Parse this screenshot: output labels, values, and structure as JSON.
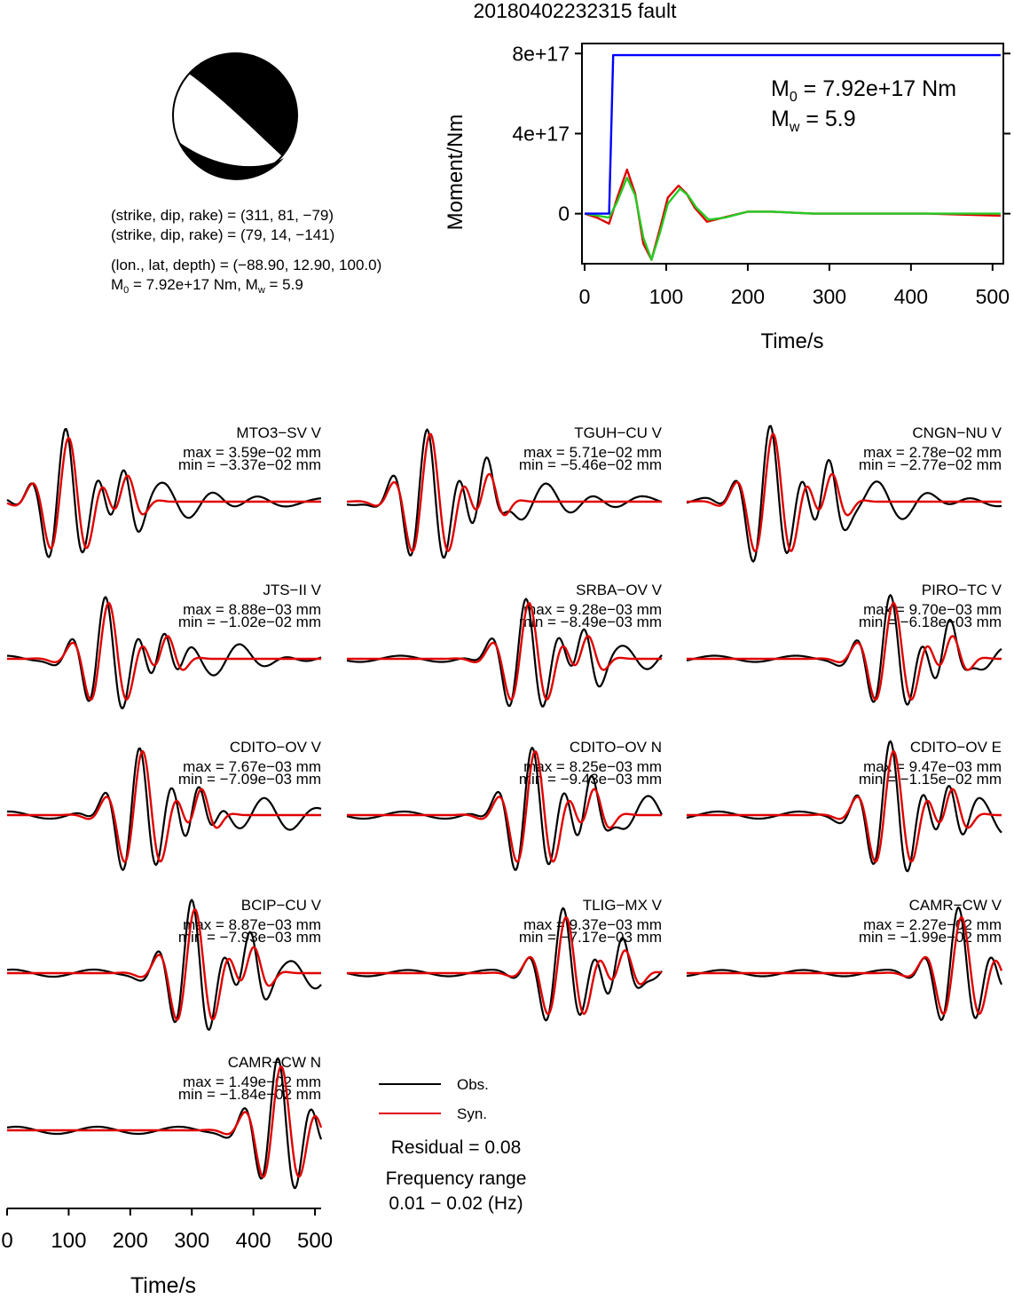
{
  "title": "20180402232315 fault",
  "mechanism": {
    "line1": "(strike, dip, rake) = (311, 81, −79)",
    "line2": "(strike, dip, rake) = (79, 14, −141)",
    "line3": "(lon., lat, depth) = (−88.90, 12.90, 100.0)",
    "m0_label": "M",
    "m0_sub": "0",
    "m0_text": " = 7.92e+17 Nm, M",
    "mw_sub": "w",
    "mw_text": " = 5.9"
  },
  "moment_plot": {
    "ylabel": "Moment/Nm",
    "xlabel": "Time/s",
    "m0_annot": " = 7.92e+17 Nm",
    "mw_annot": " = 5.9",
    "m_letter": "M",
    "m0_sub": "0",
    "mw_sub": "w",
    "yticks": [
      {
        "v": 0,
        "label": "0"
      },
      {
        "v": 4e+17,
        "label": "4e+17"
      },
      {
        "v": 8e+17,
        "label": "8e+17"
      }
    ],
    "xticks": [
      0,
      100,
      200,
      300,
      400,
      500
    ]
  },
  "traces_xlabel": "Time/s",
  "traces_xticks": [
    0,
    100,
    200,
    300,
    400,
    500
  ],
  "legend": {
    "obs": "Obs.",
    "syn": "Syn.",
    "residual": "Residual = 0.08",
    "freq_title": "Frequency range",
    "freq_value": "0.01 − 0.02 (Hz)"
  },
  "colors": {
    "obs": "#000000",
    "syn": "#e00000",
    "cumulative": "#0000ff",
    "stf_green": "#22cc22"
  },
  "chart_data": [
    {
      "type": "line",
      "title": "",
      "xlabel": "Time/s",
      "ylabel": "Moment/Nm",
      "xlim": [
        0,
        510
      ],
      "ylim": [
        -2.5e+17,
        8.5e+17
      ],
      "series": [
        {
          "color": "#0000ff",
          "x": [
            0,
            30,
            35,
            510
          ],
          "y": [
            0,
            0,
            7.92e+17,
            7.92e+17
          ]
        },
        {
          "color": "#e00000",
          "x": [
            0,
            15,
            30,
            40,
            52,
            62,
            72,
            82,
            92,
            102,
            115,
            125,
            135,
            150,
            170,
            200,
            230,
            280,
            350,
            420,
            510
          ],
          "y": [
            0,
            -2e+16,
            -5e+16,
            8e+16,
            2.2e+17,
            1e+17,
            -1.5e+17,
            -2.3e+17,
            -8e+16,
            8e+16,
            1.4e+17,
            1e+17,
            3e+16,
            -4e+16,
            -2e+16,
            1e+16,
            1e+16,
            0,
            0,
            0,
            -1e+16
          ]
        },
        {
          "color": "#22cc22",
          "x": [
            0,
            30,
            40,
            52,
            62,
            72,
            82,
            92,
            102,
            117,
            127,
            137,
            152,
            172,
            200,
            230,
            280,
            350,
            420,
            510
          ],
          "y": [
            0,
            -2e+16,
            6e+16,
            1.8e+17,
            9e+16,
            -1.2e+17,
            -2.3e+17,
            -1e+17,
            5e+16,
            1.25e+17,
            9e+16,
            3e+16,
            -3e+16,
            -2e+16,
            1e+16,
            1e+16,
            0,
            0,
            0,
            0
          ]
        }
      ]
    },
    {
      "type": "line",
      "xlim": [
        0,
        510
      ],
      "panels": [
        {
          "station": "MTO3−SV V",
          "max": "max = 3.59e−02 mm",
          "min": "min = −3.37e−02 mm"
        },
        {
          "station": "TGUH−CU V",
          "max": "max = 5.71e−02 mm",
          "min": "min = −5.46e−02 mm"
        },
        {
          "station": "CNGN−NU V",
          "max": "max = 2.78e−02 mm",
          "min": "min = −2.77e−02 mm"
        },
        {
          "station": "JTS−II V",
          "max": "max = 8.88e−03 mm",
          "min": "min = −1.02e−02 mm"
        },
        {
          "station": "SRBA−OV V",
          "max": "max = 9.28e−03 mm",
          "min": "min = −8.49e−03 mm"
        },
        {
          "station": "PIRO−TC V",
          "max": "max = 9.70e−03 mm",
          "min": "min = −6.18e−03 mm"
        },
        {
          "station": "CDITO−OV V",
          "max": "max = 7.67e−03 mm",
          "min": "min = −7.09e−03 mm"
        },
        {
          "station": "CDITO−OV N",
          "max": "max = 8.25e−03 mm",
          "min": "min = −9.43e−03 mm"
        },
        {
          "station": "CDITO−OV E",
          "max": "max = 9.47e−03 mm",
          "min": "min = −1.15e−02 mm"
        },
        {
          "station": "BCIP−CU V",
          "max": "max = 8.87e−03 mm",
          "min": "min = −7.93e−03 mm"
        },
        {
          "station": "TLIG−MX V",
          "max": "max = 9.37e−03 mm",
          "min": "min = −7.17e−03 mm"
        },
        {
          "station": "CAMR−CW V",
          "max": "max = 2.27e−02 mm",
          "min": "min = −1.99e−02 mm"
        },
        {
          "station": "CAMR−CW N",
          "max": "max = 1.49e−02 mm",
          "min": "min = −1.84e−02 mm"
        }
      ]
    }
  ]
}
